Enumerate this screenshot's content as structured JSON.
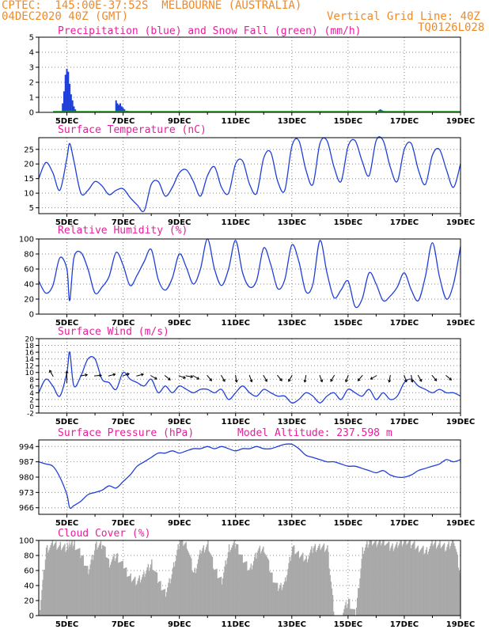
{
  "header": {
    "line1_left": "CPTEC:  145:00E-37:52S  MELBOURNE (AUSTRALIA)",
    "line2_left": "04DEC2020 40Z (GMT)",
    "line2_right": "Vertical Grid Line: 40Z",
    "line3_right": "TQ0126L028"
  },
  "colors": {
    "header": "#f08a28",
    "panel_title": "#e81e9c",
    "series": "#1f3fd8",
    "snow": "#22aa22",
    "cloud": "#a9a9a9",
    "grid": "#888888"
  },
  "x_axis": {
    "labels": [
      "5DEC",
      "7DEC",
      "9DEC",
      "11DEC",
      "13DEC",
      "15DEC",
      "17DEC",
      "19DEC"
    ],
    "start_day": 4.0,
    "end_day": 19.0
  },
  "panels": {
    "precip": {
      "title": "Precipitation (blue) and Snow Fall (green) (mm/h)"
    },
    "temperature": {
      "title": "Surface Temperature (nC)"
    },
    "humidity": {
      "title": "Relative Humidity (%)"
    },
    "wind": {
      "title": "Surface Wind (m/s)"
    },
    "pressure": {
      "title": "Surface Pressure (hPa)",
      "extra": "Model Altitude: 237.598 m"
    },
    "cloud": {
      "title": "Cloud Cover (%)"
    }
  },
  "chart_data": [
    {
      "type": "bar",
      "id": "precip",
      "title": "Precipitation (blue) and Snow Fall (green) (mm/h)",
      "ylim": [
        0,
        5
      ],
      "yticks": [
        0,
        1,
        2,
        3,
        4,
        5
      ],
      "series": [
        {
          "name": "Precipitation",
          "color": "#1f3fd8",
          "x": [
            4.85,
            4.9,
            4.95,
            5.0,
            5.05,
            5.1,
            5.15,
            5.2,
            5.25,
            5.3,
            6.75,
            6.8,
            6.85,
            6.9,
            6.95,
            7.0,
            7.05,
            7.1,
            7.15,
            16.1,
            16.15,
            16.2,
            16.25
          ],
          "values": [
            0.6,
            1.4,
            2.5,
            2.9,
            2.7,
            1.9,
            1.2,
            0.8,
            0.4,
            0.2,
            0.8,
            0.6,
            0.5,
            0.6,
            0.4,
            0.3,
            0.2,
            0.1,
            0.1,
            0.15,
            0.2,
            0.15,
            0.1
          ]
        }
      ],
      "snow_line": {
        "name": "Snow Fall",
        "color": "#22aa22",
        "value": 0
      }
    },
    {
      "type": "line",
      "id": "temperature",
      "title": "Surface Temperature (nC)",
      "ylim": [
        3,
        29
      ],
      "yticks": [
        5,
        10,
        15,
        20,
        25
      ],
      "x": [
        4.0,
        4.25,
        4.5,
        4.75,
        5.0,
        5.1,
        5.25,
        5.5,
        5.75,
        6.0,
        6.25,
        6.5,
        6.75,
        7.0,
        7.25,
        7.5,
        7.75,
        8.0,
        8.25,
        8.5,
        8.75,
        9.0,
        9.25,
        9.5,
        9.75,
        10.0,
        10.25,
        10.5,
        10.75,
        11.0,
        11.25,
        11.5,
        11.75,
        12.0,
        12.25,
        12.5,
        12.75,
        13.0,
        13.25,
        13.5,
        13.75,
        14.0,
        14.25,
        14.5,
        14.75,
        15.0,
        15.25,
        15.5,
        15.75,
        16.0,
        16.25,
        16.5,
        16.75,
        17.0,
        17.25,
        17.5,
        17.75,
        18.0,
        18.25,
        18.5,
        18.75,
        19.0
      ],
      "values": [
        15,
        20.5,
        17,
        11,
        22,
        27,
        21,
        10,
        11,
        14,
        12.5,
        9.5,
        11,
        11.5,
        8.5,
        6,
        4,
        13,
        14,
        9,
        12,
        17,
        18,
        14,
        9,
        16,
        19,
        12,
        10,
        20,
        21,
        13,
        10,
        22,
        24,
        14,
        11,
        26,
        28,
        18,
        13,
        27,
        28,
        19,
        14,
        26,
        28,
        21,
        16,
        28,
        28,
        19,
        14,
        25,
        27,
        18,
        13,
        23,
        25,
        18,
        12,
        20
      ]
    },
    {
      "type": "line",
      "id": "humidity",
      "title": "Relative Humidity (%)",
      "ylim": [
        0,
        100
      ],
      "yticks": [
        0,
        20,
        40,
        60,
        80,
        100
      ],
      "x": [
        4.0,
        4.25,
        4.5,
        4.75,
        5.0,
        5.1,
        5.25,
        5.5,
        5.75,
        6.0,
        6.25,
        6.5,
        6.75,
        7.0,
        7.25,
        7.5,
        7.75,
        8.0,
        8.25,
        8.5,
        8.75,
        9.0,
        9.25,
        9.5,
        9.75,
        10.0,
        10.25,
        10.5,
        10.75,
        11.0,
        11.25,
        11.5,
        11.75,
        12.0,
        12.25,
        12.5,
        12.75,
        13.0,
        13.25,
        13.5,
        13.75,
        14.0,
        14.25,
        14.5,
        14.75,
        15.0,
        15.25,
        15.5,
        15.75,
        16.0,
        16.25,
        16.5,
        16.75,
        17.0,
        17.25,
        17.5,
        17.75,
        18.0,
        18.25,
        18.5,
        18.75,
        19.0
      ],
      "values": [
        44,
        28,
        38,
        75,
        60,
        18,
        75,
        82,
        60,
        28,
        36,
        50,
        82,
        65,
        38,
        52,
        70,
        86,
        46,
        32,
        48,
        80,
        62,
        40,
        60,
        100,
        60,
        38,
        60,
        98,
        55,
        36,
        45,
        88,
        66,
        34,
        46,
        92,
        70,
        30,
        40,
        98,
        55,
        22,
        32,
        44,
        10,
        20,
        55,
        40,
        18,
        24,
        36,
        55,
        32,
        18,
        50,
        95,
        50,
        20,
        40,
        90
      ]
    },
    {
      "type": "line",
      "id": "wind",
      "title": "Surface Wind (m/s)",
      "ylim": [
        -2,
        20
      ],
      "yticks": [
        -2,
        0,
        2,
        4,
        6,
        8,
        10,
        12,
        14,
        16,
        18,
        20
      ],
      "x": [
        4.0,
        4.25,
        4.5,
        4.75,
        5.0,
        5.1,
        5.25,
        5.5,
        5.75,
        6.0,
        6.25,
        6.5,
        6.75,
        7.0,
        7.25,
        7.5,
        7.75,
        8.0,
        8.25,
        8.5,
        8.75,
        9.0,
        9.25,
        9.5,
        9.75,
        10.0,
        10.25,
        10.5,
        10.75,
        11.0,
        11.25,
        11.5,
        11.75,
        12.0,
        12.25,
        12.5,
        12.75,
        13.0,
        13.25,
        13.5,
        13.75,
        14.0,
        14.25,
        14.5,
        14.75,
        15.0,
        15.25,
        15.5,
        15.75,
        16.0,
        16.25,
        16.5,
        16.75,
        17.0,
        17.25,
        17.5,
        17.75,
        18.0,
        18.25,
        18.5,
        18.75,
        19.0
      ],
      "values": [
        4,
        8,
        6,
        3,
        10,
        16,
        6,
        9,
        14,
        14,
        8,
        7,
        5,
        10,
        8,
        7,
        6,
        8,
        4,
        6,
        4,
        6,
        5,
        4,
        5,
        5,
        4,
        5,
        2,
        4,
        6,
        4,
        3,
        5,
        4,
        3,
        3,
        1,
        2,
        4,
        3,
        1,
        3,
        4,
        2,
        5,
        4,
        3,
        5,
        2,
        4,
        2,
        3,
        7,
        8,
        6,
        5,
        4,
        5,
        4,
        4,
        3
      ],
      "arrows_note": "wind direction arrows drawn along y=9"
    },
    {
      "type": "line",
      "id": "pressure",
      "title": "Surface Pressure (hPa)",
      "ylim": [
        963,
        997
      ],
      "yticks": [
        966,
        973,
        980,
        987,
        994
      ],
      "x": [
        4.0,
        4.25,
        4.5,
        4.75,
        5.0,
        5.1,
        5.25,
        5.5,
        5.75,
        6.0,
        6.25,
        6.5,
        6.75,
        7.0,
        7.25,
        7.5,
        7.75,
        8.0,
        8.25,
        8.5,
        8.75,
        9.0,
        9.25,
        9.5,
        9.75,
        10.0,
        10.25,
        10.5,
        10.75,
        11.0,
        11.25,
        11.5,
        11.75,
        12.0,
        12.25,
        12.5,
        12.75,
        13.0,
        13.25,
        13.5,
        13.75,
        14.0,
        14.25,
        14.5,
        14.75,
        15.0,
        15.25,
        15.5,
        15.75,
        16.0,
        16.25,
        16.5,
        16.75,
        17.0,
        17.25,
        17.5,
        17.75,
        18.0,
        18.25,
        18.5,
        18.75,
        19.0
      ],
      "values": [
        987,
        986,
        985,
        980,
        972,
        966,
        967,
        969,
        972,
        973,
        974,
        976,
        975,
        978,
        981,
        985,
        987,
        989,
        991,
        991,
        992,
        991,
        992,
        993,
        993,
        994,
        993,
        994,
        993,
        992,
        993,
        993,
        994,
        993,
        993,
        994,
        995,
        995,
        993,
        990,
        989,
        988,
        987,
        987,
        986,
        985,
        985,
        984,
        983,
        982,
        983,
        981,
        980,
        980,
        981,
        983,
        984,
        985,
        986,
        988,
        987,
        988
      ]
    },
    {
      "type": "area",
      "id": "cloud",
      "title": "Cloud Cover (%)",
      "ylim": [
        0,
        100
      ],
      "yticks": [
        0,
        20,
        40,
        60,
        80,
        100
      ],
      "x": [
        4.0,
        4.25,
        4.5,
        4.75,
        5.0,
        5.1,
        5.25,
        5.5,
        5.75,
        6.0,
        6.25,
        6.5,
        6.75,
        7.0,
        7.25,
        7.5,
        7.75,
        8.0,
        8.25,
        8.5,
        8.75,
        9.0,
        9.25,
        9.5,
        9.75,
        10.0,
        10.25,
        10.5,
        10.75,
        11.0,
        11.25,
        11.5,
        11.75,
        12.0,
        12.25,
        12.5,
        12.75,
        13.0,
        13.25,
        13.5,
        13.75,
        14.0,
        14.25,
        14.5,
        14.75,
        15.0,
        15.25,
        15.5,
        15.75,
        16.0,
        16.25,
        16.5,
        16.75,
        17.0,
        17.25,
        17.5,
        17.75,
        18.0,
        18.25,
        18.5,
        18.75,
        19.0
      ],
      "values": [
        0,
        88,
        95,
        92,
        90,
        95,
        95,
        80,
        60,
        92,
        95,
        70,
        80,
        65,
        50,
        45,
        55,
        70,
        45,
        30,
        60,
        100,
        95,
        55,
        85,
        95,
        60,
        45,
        90,
        95,
        75,
        60,
        85,
        90,
        55,
        35,
        45,
        90,
        80,
        75,
        90,
        92,
        90,
        0,
        0,
        20,
        0,
        85,
        100,
        95,
        100,
        90,
        95,
        100,
        95,
        90,
        85,
        95,
        95,
        90,
        100,
        50
      ]
    }
  ]
}
